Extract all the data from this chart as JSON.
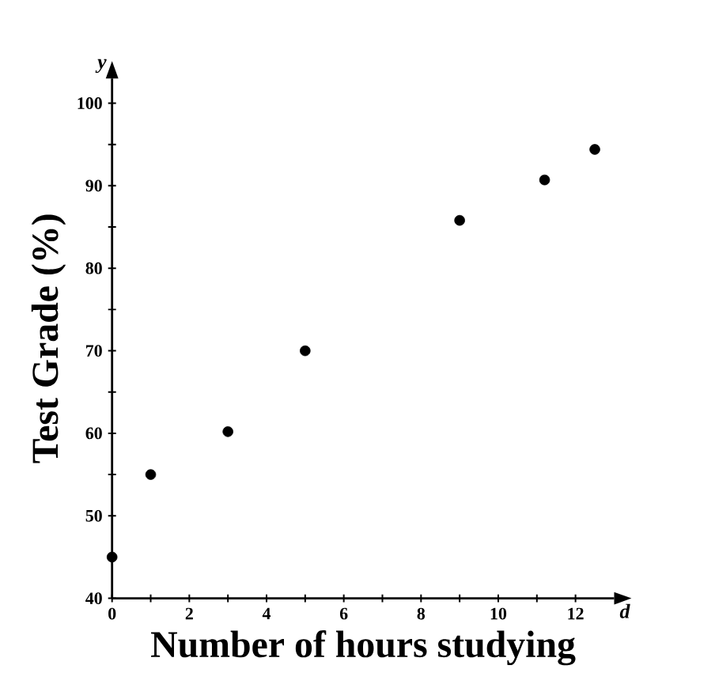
{
  "chart_data": {
    "type": "scatter",
    "xlabel": "Number of hours studying",
    "ylabel": "Test Grade (%)",
    "annotations": [
      "y",
      "d"
    ],
    "x": [
      0,
      1,
      3,
      5,
      9,
      11.2,
      12.5
    ],
    "values": [
      45,
      55,
      60.2,
      70,
      85.8,
      90.7,
      94.4
    ],
    "color": "#000000",
    "xlim": [
      0,
      13
    ],
    "ylim": [
      40,
      103
    ],
    "xticks": [
      0,
      {
        "value": 1,
        "label": null
      },
      2,
      {
        "value": 3,
        "label": null
      },
      4,
      {
        "value": 5,
        "label": null
      },
      6,
      {
        "value": 7,
        "label": null
      },
      8,
      {
        "value": 9,
        "label": null
      },
      10,
      {
        "value": 11,
        "label": null
      },
      12
    ],
    "yticks": [
      40,
      {
        "value": 45,
        "label": null
      },
      50,
      {
        "value": 55,
        "label": null
      },
      60,
      {
        "value": 65,
        "label": null
      },
      70,
      {
        "value": 75,
        "label": null
      },
      80,
      {
        "value": 85,
        "label": null
      },
      90,
      {
        "value": 95,
        "label": null
      },
      100
    ],
    "grid": false
  }
}
